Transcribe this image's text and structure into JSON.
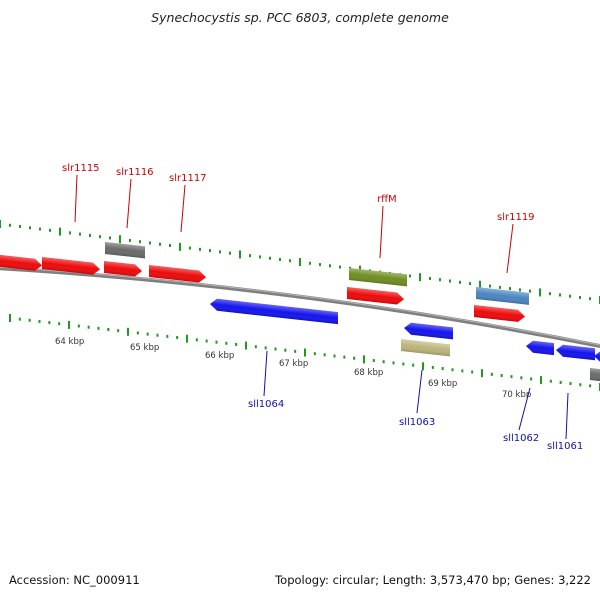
{
  "title": "Synechocystis sp. PCC 6803, complete genome",
  "footer": {
    "accession": "Accession: NC_000911",
    "topology": "Topology: circular; Length: 3,573,470 bp; Genes: 3,222"
  },
  "ticks": [
    "64 kbp",
    "65 kbp",
    "66 kbp",
    "67 kbp",
    "68 kbp",
    "69 kbp",
    "70 kbp"
  ],
  "colors": {
    "forward_label": "#cc0000",
    "reverse_label": "#1010b0",
    "backbone": "#8a8a8a",
    "ticks": "#1e9a1e",
    "red_gene": "#ee0a0a",
    "blue_gene": "#1414ee",
    "gray_gene": "#6a6a6a",
    "olive_gene": "#6f8e22",
    "steel_gene": "#4a86c0",
    "khaki_gene": "#bcb47a"
  },
  "forward_labels": [
    "slr1115",
    "slr1116",
    "slr1117",
    "rffM",
    "slr1119"
  ],
  "reverse_labels": [
    "sll1064",
    "sll1063",
    "sll1062",
    "sll1061"
  ]
}
